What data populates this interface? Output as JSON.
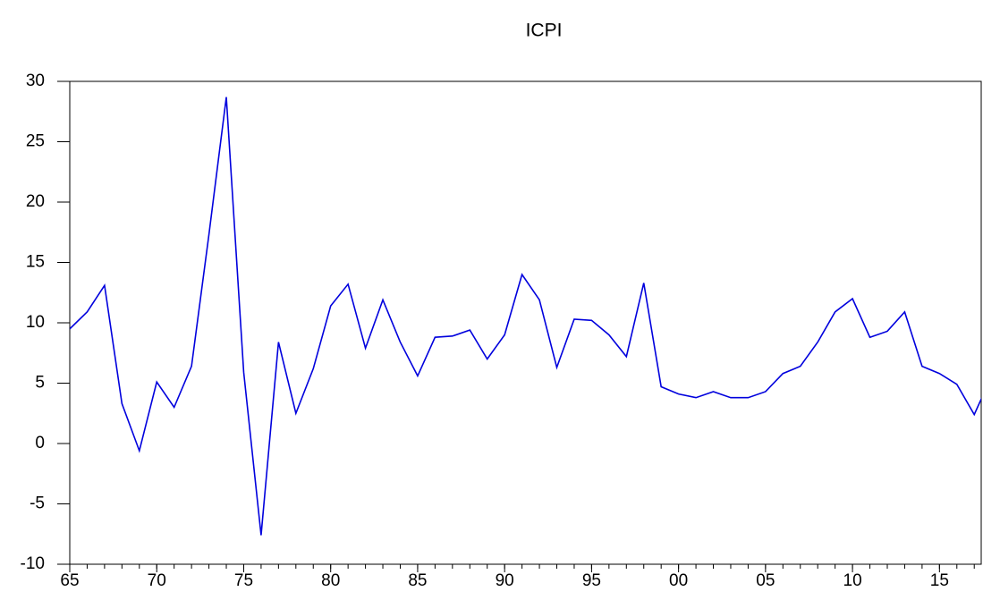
{
  "chart_data": {
    "type": "line",
    "title": "ICPI",
    "x": [
      1965,
      1966,
      1967,
      1968,
      1969,
      1970,
      1971,
      1972,
      1973,
      1974,
      1975,
      1976,
      1977,
      1978,
      1979,
      1980,
      1981,
      1982,
      1983,
      1984,
      1985,
      1986,
      1987,
      1988,
      1989,
      1990,
      1991,
      1992,
      1993,
      1994,
      1995,
      1996,
      1997,
      1998,
      1999,
      2000,
      2001,
      2002,
      2003,
      2004,
      2005,
      2006,
      2007,
      2008,
      2009,
      2010,
      2011,
      2012,
      2013,
      2014,
      2015,
      2016,
      2017,
      2018
    ],
    "series": [
      {
        "name": "ICPI",
        "color": "#0000dd",
        "values": [
          9.5,
          10.9,
          13.1,
          3.3,
          -0.6,
          5.1,
          3.0,
          6.4,
          17.3,
          28.7,
          5.9,
          -7.6,
          8.4,
          2.5,
          6.2,
          11.4,
          13.2,
          7.9,
          11.9,
          8.4,
          5.6,
          8.8,
          8.9,
          9.4,
          7.0,
          9.0,
          14.0,
          11.9,
          6.3,
          10.3,
          10.2,
          9.0,
          7.2,
          13.3,
          4.7,
          4.1,
          3.8,
          4.3,
          3.8,
          3.8,
          4.3,
          5.8,
          6.4,
          8.4,
          10.9,
          12.0,
          8.8,
          9.3,
          10.9,
          6.4,
          5.8,
          4.9,
          2.4,
          5.6
        ]
      }
    ],
    "xlim": [
      1965,
      2017.4
    ],
    "xticks": [
      {
        "value": 1965,
        "label": "65"
      },
      {
        "value": 1970,
        "label": "70"
      },
      {
        "value": 1975,
        "label": "75"
      },
      {
        "value": 1980,
        "label": "80"
      },
      {
        "value": 1985,
        "label": "85"
      },
      {
        "value": 1990,
        "label": "90"
      },
      {
        "value": 1995,
        "label": "95"
      },
      {
        "value": 2000,
        "label": "00"
      },
      {
        "value": 2005,
        "label": "05"
      },
      {
        "value": 2010,
        "label": "10"
      },
      {
        "value": 2015,
        "label": "15"
      }
    ],
    "ylim": [
      -10,
      30
    ],
    "yticks": [
      -10,
      -5,
      0,
      5,
      10,
      15,
      20,
      25,
      30
    ],
    "grid": false
  }
}
